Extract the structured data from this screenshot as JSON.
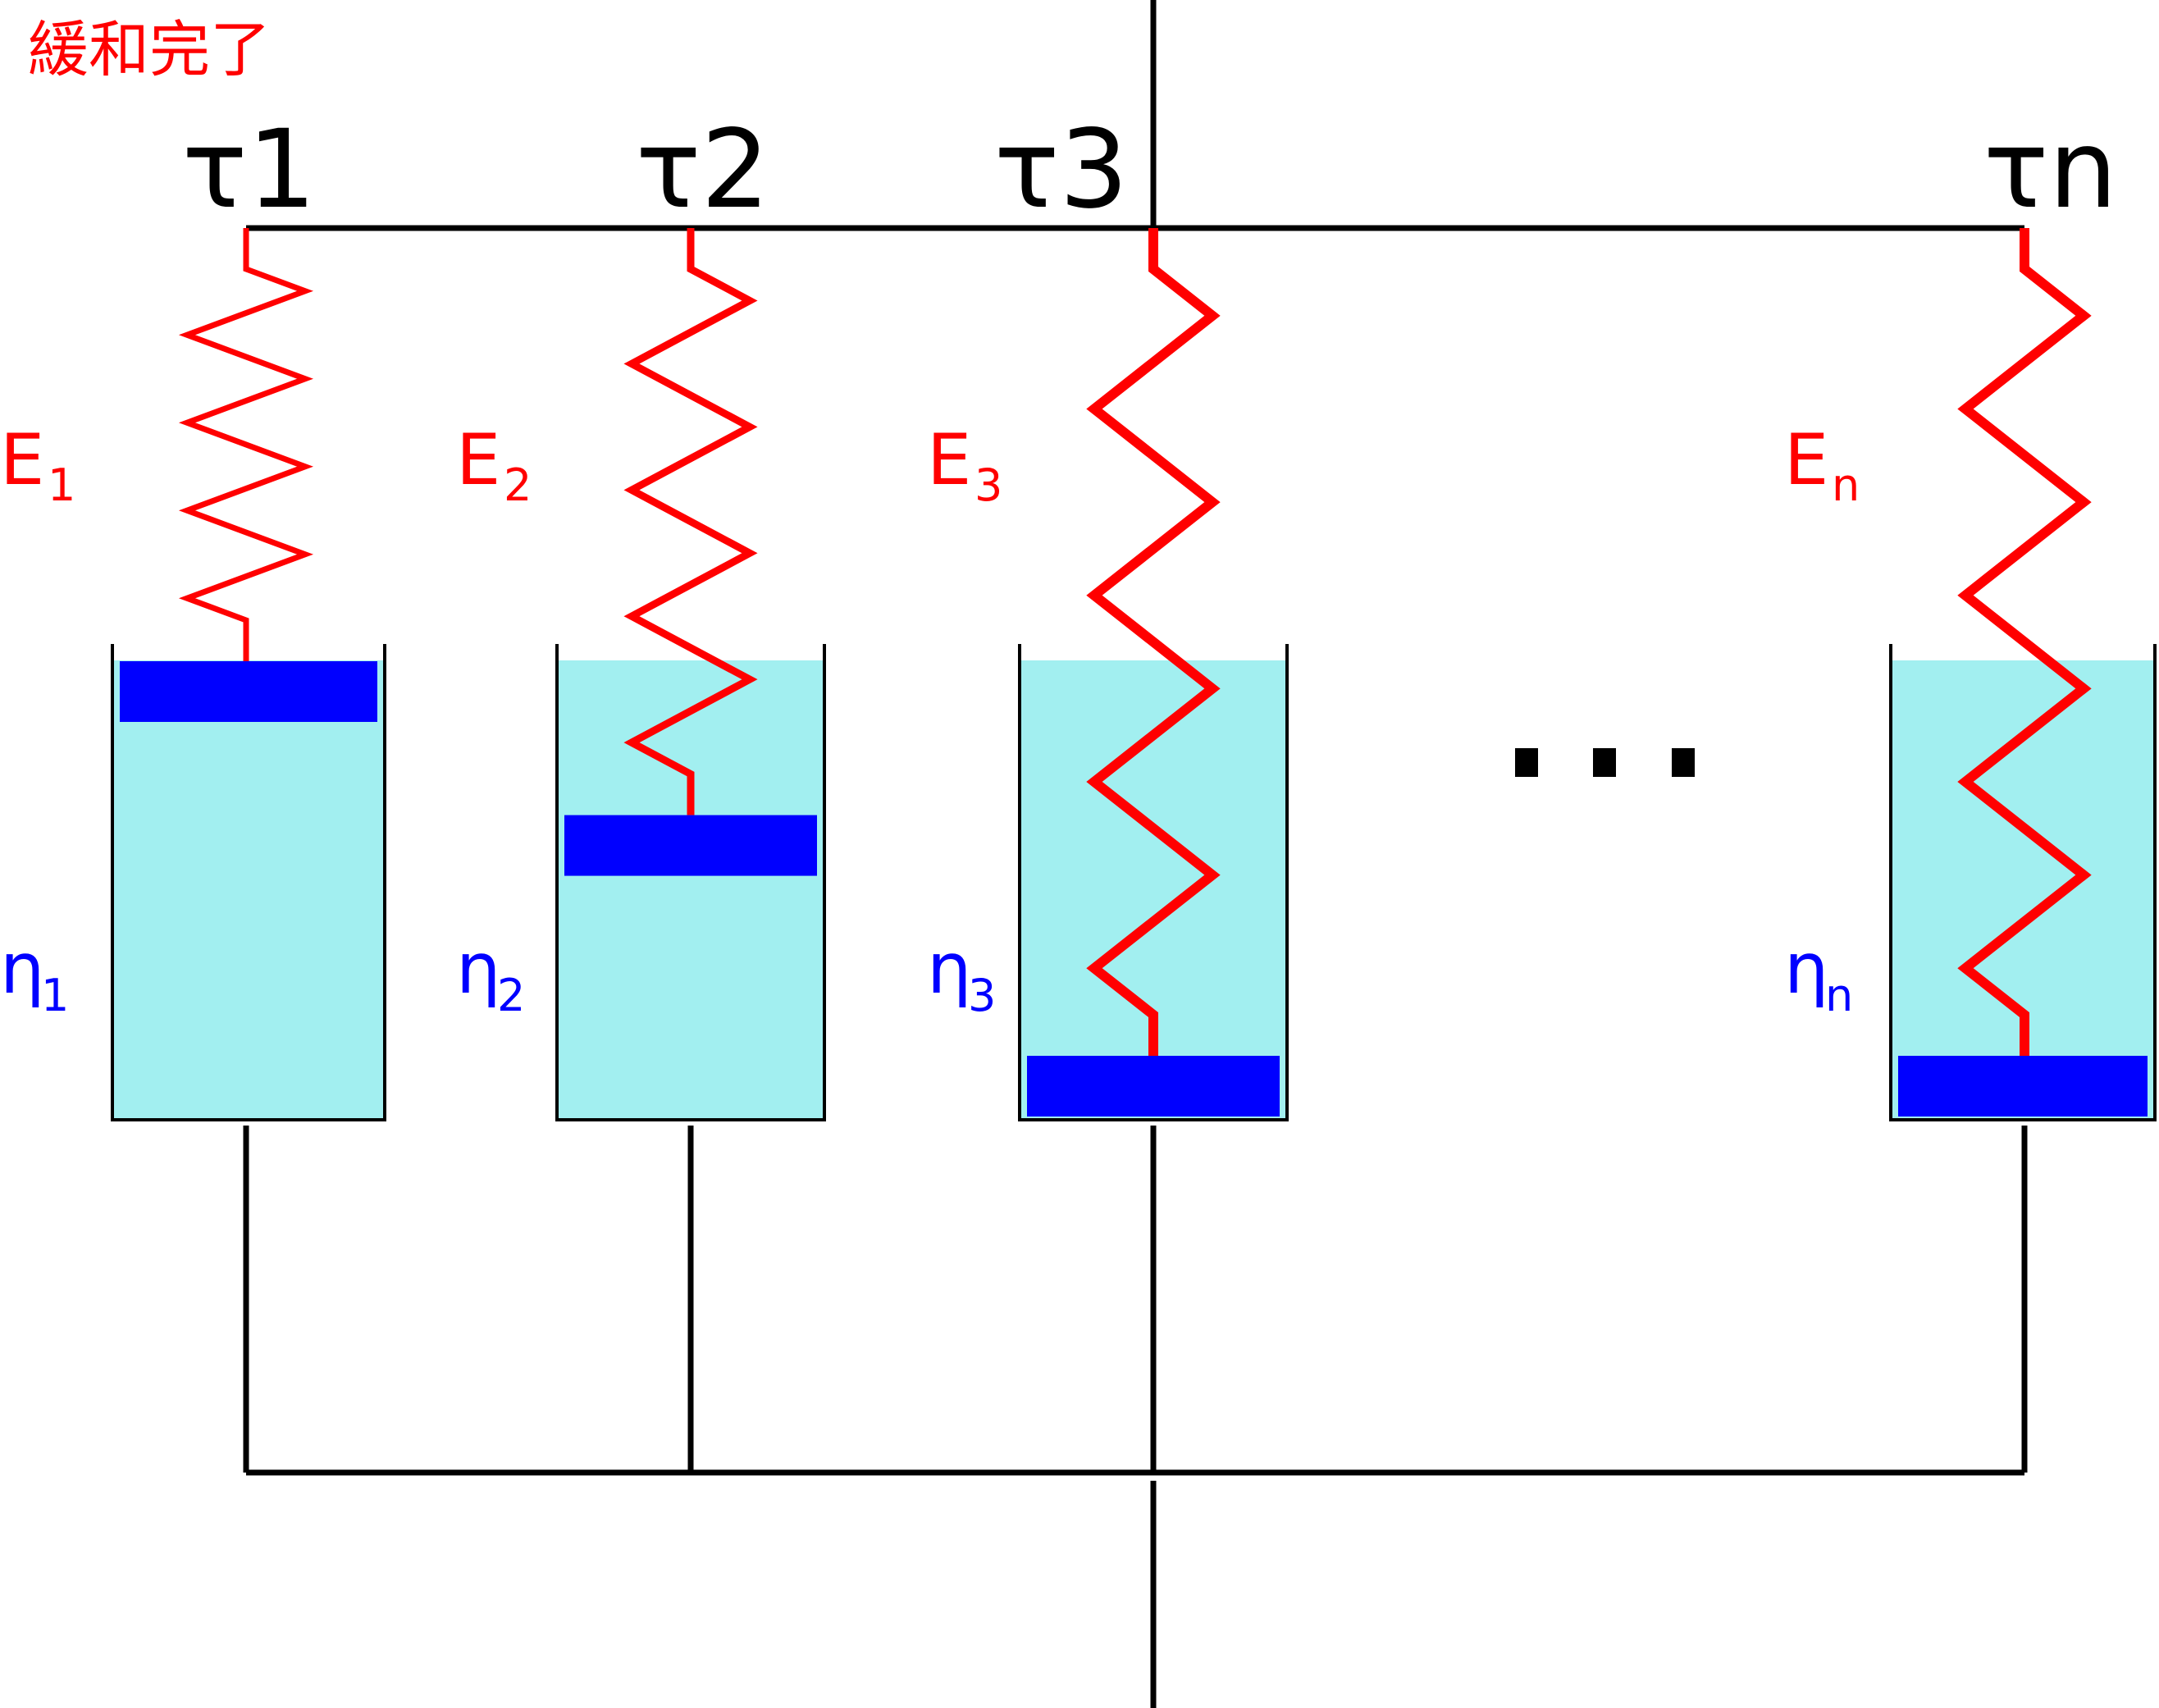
{
  "title": "緩和完了",
  "colors": {
    "spring": "#ff0000",
    "piston": "#0000ff",
    "fluid": "#a2eff0",
    "frame": "#000000",
    "modulus_label": "#ff0000",
    "viscosity_label": "#0000ff"
  },
  "elements": [
    {
      "id": 1,
      "tau": "τ1",
      "E_base": "E",
      "E_sub": "1",
      "eta_base": "η",
      "eta_sub": "1",
      "fluid_visible": true,
      "piston_level": 0.0
    },
    {
      "id": 2,
      "tau": "τ2",
      "E_base": "E",
      "E_sub": "2",
      "eta_base": "η",
      "eta_sub": "2",
      "fluid_visible": true,
      "piston_level": 0.39
    },
    {
      "id": 3,
      "tau": "τ3",
      "E_base": "E",
      "E_sub": "3",
      "eta_base": "η",
      "eta_sub": "3",
      "fluid_visible": true,
      "piston_level": 1.0
    },
    {
      "id": "n",
      "tau": "τn",
      "E_base": "E",
      "E_sub": "n",
      "eta_base": "η",
      "eta_sub": "n",
      "fluid_visible": true,
      "piston_level": 1.0
    }
  ],
  "ellipsis": "..."
}
